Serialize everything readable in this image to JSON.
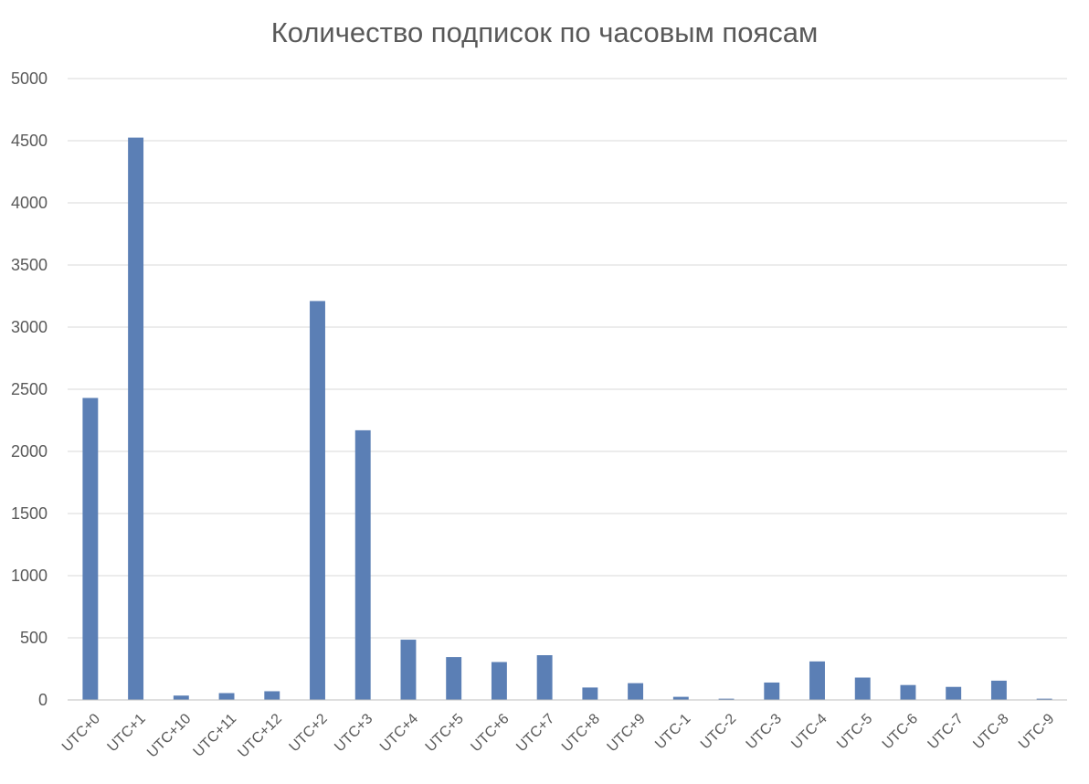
{
  "chart_data": {
    "type": "bar",
    "title": "Количество подписок по часовым поясам",
    "xlabel": "",
    "ylabel": "",
    "ylim": [
      0,
      5000
    ],
    "yticks": [
      0,
      500,
      1000,
      1500,
      2000,
      2500,
      3000,
      3500,
      4000,
      4500,
      5000
    ],
    "grid": true,
    "legend": "none",
    "bar_color": "#5b7fb5",
    "categories": [
      "UTC+0",
      "UTC+1",
      "UTC+10",
      "UTC+11",
      "UTC+12",
      "UTC+2",
      "UTC+3",
      "UTC+4",
      "UTC+5",
      "UTC+6",
      "UTC+7",
      "UTC+8",
      "UTC+9",
      "UTC-1",
      "UTC-2",
      "UTC-3",
      "UTC-4",
      "UTC-5",
      "UTC-6",
      "UTC-7",
      "UTC-8",
      "UTC-9"
    ],
    "values": [
      2430,
      4525,
      35,
      55,
      70,
      3210,
      2170,
      485,
      345,
      305,
      360,
      100,
      135,
      25,
      10,
      140,
      310,
      180,
      120,
      105,
      155,
      10
    ]
  }
}
